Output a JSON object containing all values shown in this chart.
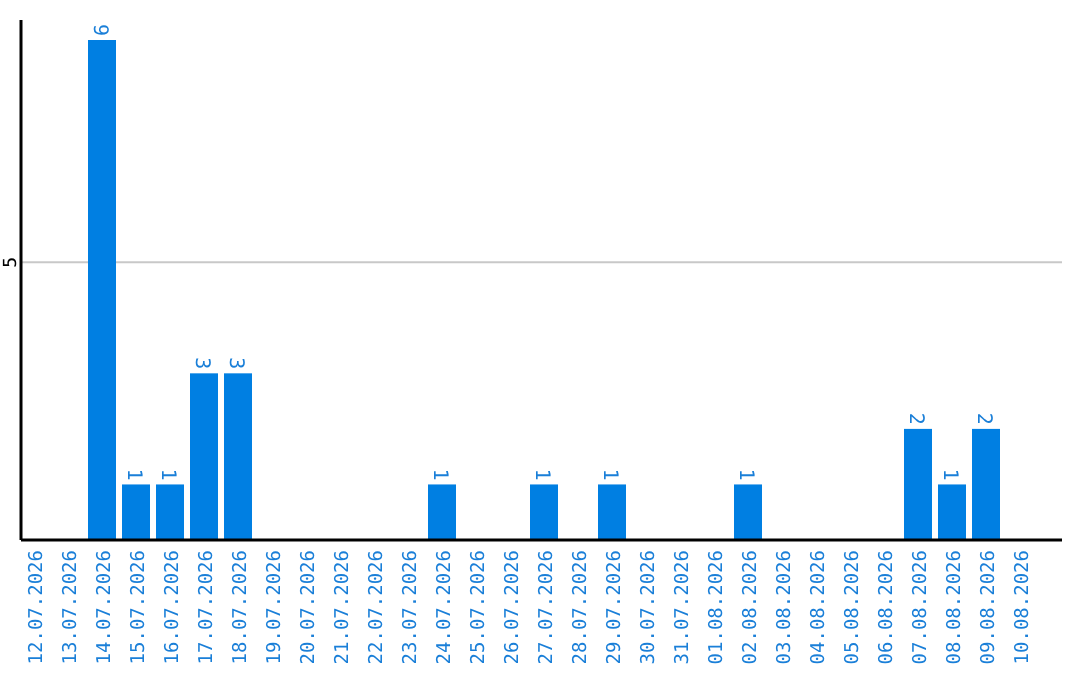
{
  "chart_data": {
    "type": "bar",
    "categories": [
      "12.07.2026",
      "13.07.2026",
      "14.07.2026",
      "15.07.2026",
      "16.07.2026",
      "17.07.2026",
      "18.07.2026",
      "19.07.2026",
      "20.07.2026",
      "21.07.2026",
      "22.07.2026",
      "23.07.2026",
      "24.07.2026",
      "25.07.2026",
      "26.07.2026",
      "27.07.2026",
      "28.07.2026",
      "29.07.2026",
      "30.07.2026",
      "31.07.2026",
      "01.08.2026",
      "02.08.2026",
      "03.08.2026",
      "04.08.2026",
      "05.08.2026",
      "06.08.2026",
      "07.08.2026",
      "08.08.2026",
      "09.08.2026",
      "10.08.2026"
    ],
    "values": [
      0,
      0,
      9,
      1,
      1,
      3,
      3,
      0,
      0,
      0,
      0,
      0,
      1,
      0,
      0,
      1,
      0,
      1,
      0,
      0,
      0,
      1,
      0,
      0,
      0,
      0,
      2,
      1,
      2,
      0
    ],
    "value_labels": [
      null,
      null,
      "9",
      "1",
      "1",
      "3",
      "3",
      null,
      null,
      null,
      null,
      null,
      "1",
      null,
      null,
      "1",
      null,
      "1",
      null,
      null,
      null,
      "1",
      null,
      null,
      null,
      null,
      "2",
      "1",
      "2",
      null
    ],
    "color": "#007fe2",
    "ylim": [
      0,
      9.36
    ],
    "yticks": [
      5
    ],
    "grid": "y"
  }
}
